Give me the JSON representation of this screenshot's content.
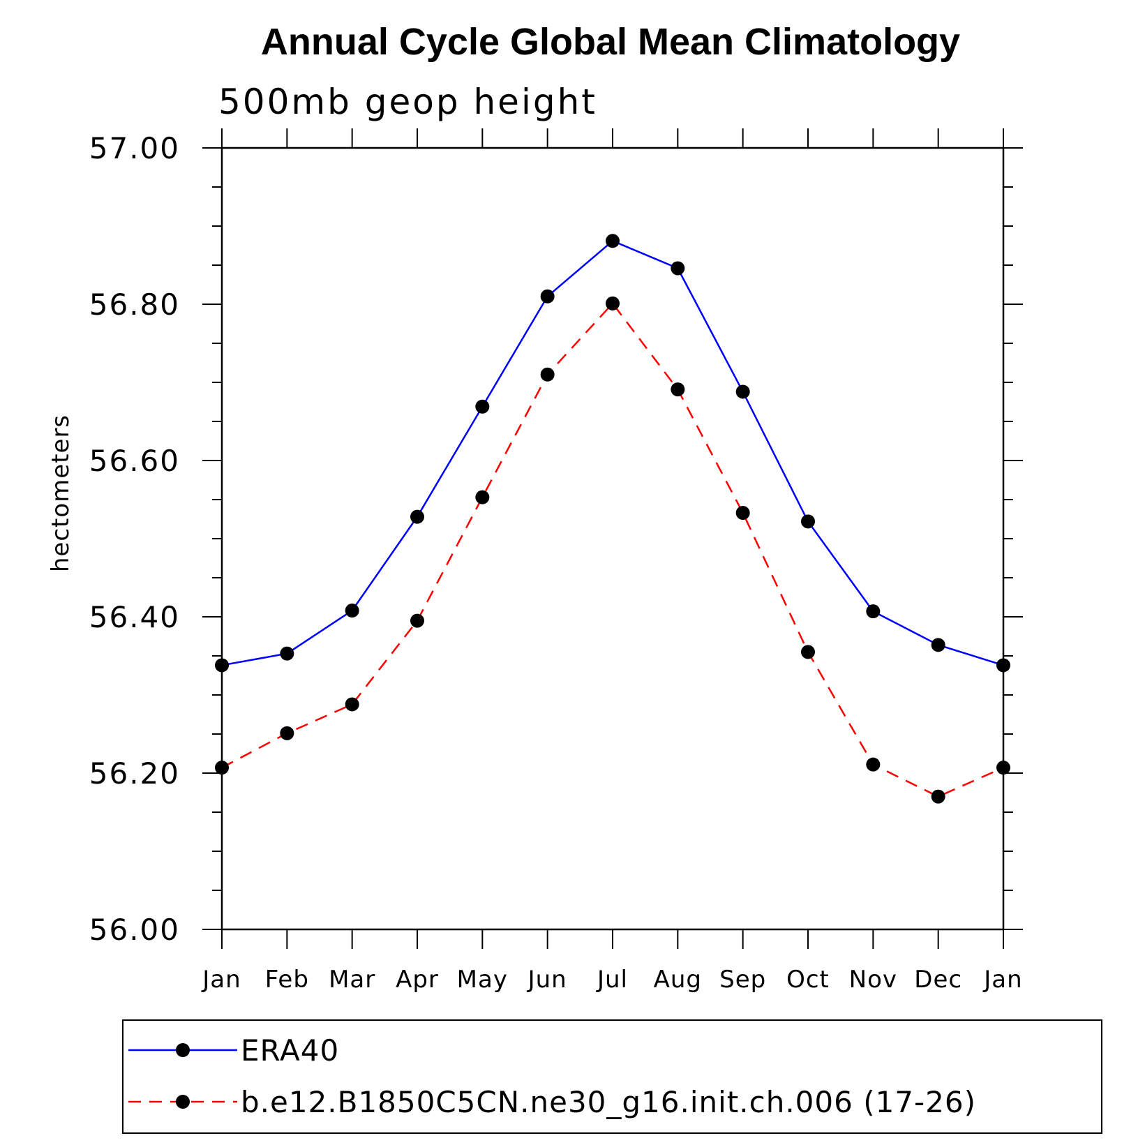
{
  "chart_data": {
    "type": "line",
    "title": "Annual Cycle Global Mean Climatology",
    "subtitle": "500mb geop height",
    "ylabel": "hectometers",
    "xlabel": "",
    "ylim": [
      56.0,
      57.0
    ],
    "yticks": [
      "56.00",
      "56.20",
      "56.40",
      "56.60",
      "56.80",
      "57.00"
    ],
    "categories": [
      "Jan",
      "Feb",
      "Mar",
      "Apr",
      "May",
      "Jun",
      "Jul",
      "Aug",
      "Sep",
      "Oct",
      "Nov",
      "Dec",
      "Jan"
    ],
    "grid": false,
    "legend": "bottom",
    "series": [
      {
        "name": "ERA40",
        "color": "#0000ff",
        "dash": "solid",
        "marker": "filled-circle",
        "values": [
          56.338,
          56.353,
          56.408,
          56.528,
          56.669,
          56.81,
          56.881,
          56.846,
          56.688,
          56.522,
          56.407,
          56.364,
          56.338
        ]
      },
      {
        "name": "b.e12.B1850C5CN.ne30_g16.init.ch.006 (17-26)",
        "color": "#ff0000",
        "dash": "dashed",
        "marker": "filled-circle",
        "values": [
          56.207,
          56.251,
          56.288,
          56.395,
          56.553,
          56.71,
          56.801,
          56.691,
          56.533,
          56.355,
          56.211,
          56.17,
          56.207
        ]
      }
    ]
  }
}
